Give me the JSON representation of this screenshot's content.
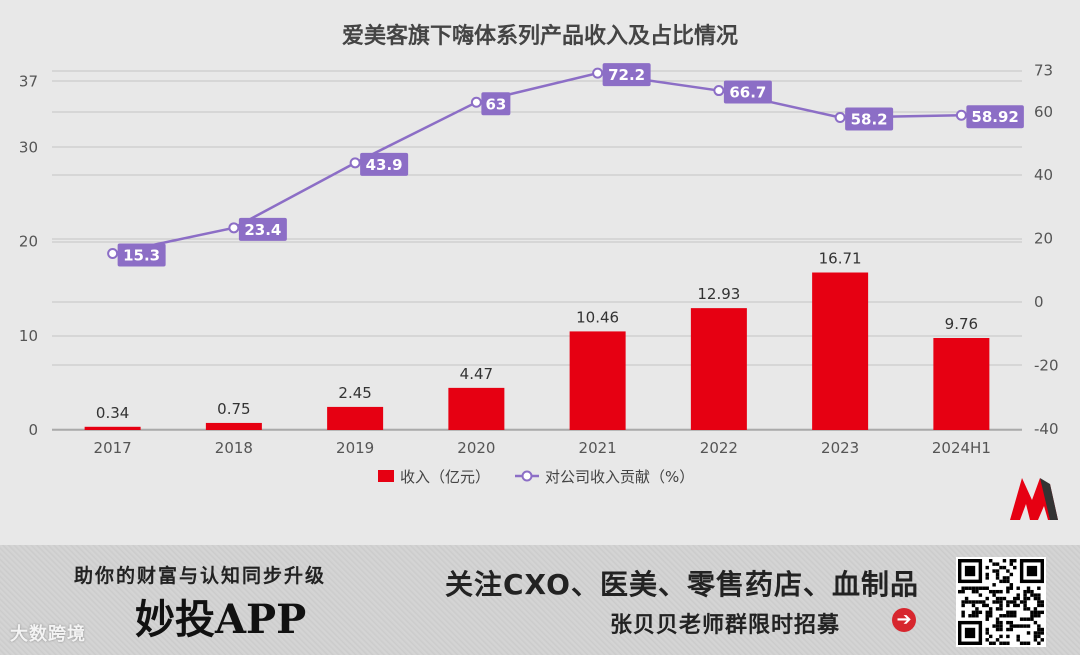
{
  "chart_data": {
    "type": "bar+line",
    "title": "爱美客旗下嗨体系列产品收入及占比情况",
    "categories": [
      "2017",
      "2018",
      "2019",
      "2020",
      "2021",
      "2022",
      "2023",
      "2024H1"
    ],
    "series": [
      {
        "name": "收入（亿元）",
        "type": "bar",
        "axis": "left",
        "values": [
          0.34,
          0.75,
          2.45,
          4.47,
          10.46,
          12.93,
          16.71,
          9.76
        ],
        "color": "#e60012"
      },
      {
        "name": "对公司收入贡献（%）",
        "type": "line",
        "axis": "right",
        "values": [
          15.3,
          23.4,
          43.9,
          63,
          72.2,
          66.7,
          58.2,
          58.92
        ],
        "color": "#8c6ec6"
      }
    ],
    "left_axis": {
      "ticks": [
        0,
        10,
        20,
        30,
        37
      ],
      "ylim": [
        0,
        37
      ]
    },
    "right_axis": {
      "ticks": [
        -40,
        -20,
        0,
        20,
        40,
        60,
        73
      ],
      "ylim": [
        -40,
        73
      ]
    },
    "grid": true,
    "legend": "bottom-center"
  },
  "banner": {
    "slogan": "助你的财富与认知同步升级",
    "app_name": "妙投APP",
    "headline": "关注CXO、医美、零售药店、血制品",
    "subline": "张贝贝老师群限时招募",
    "arrow": "➔",
    "watermark": "大数跨境"
  },
  "colors": {
    "bar": "#e60012",
    "line": "#8c6ec6",
    "background": "#e8e8e8"
  }
}
